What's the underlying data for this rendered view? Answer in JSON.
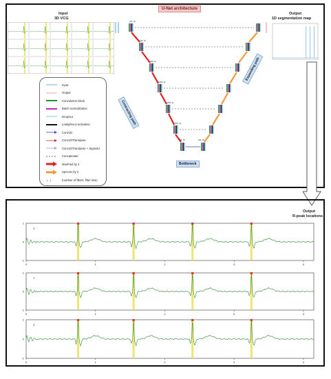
{
  "top_panel": {
    "title": "U-Net architecture",
    "input_title_line1": "Input",
    "input_title_line2": "3D VCG",
    "output_title_line1": "Output",
    "output_title_line2": "1D segmentation map",
    "contracting_path": "Contracting path",
    "expanding_path": "Expanding path",
    "bottleneck": "Bottleneck",
    "legend": [
      {
        "label": "Input",
        "color": "#4aa3df",
        "kind": "line"
      },
      {
        "label": "Output",
        "color": "#f08c8c",
        "kind": "line"
      },
      {
        "label": "Convolution block",
        "color": "#1f8f3a",
        "kind": "thick"
      },
      {
        "label": "Batch normalization",
        "color": "#c026c0",
        "kind": "thick"
      },
      {
        "label": "DropOut",
        "color": "#39c9c9",
        "kind": "line"
      },
      {
        "label": "LeakyReLU activation",
        "color": "#111111",
        "kind": "thick"
      },
      {
        "label": "Conv1D",
        "color": "#3a3af0",
        "kind": "arrow"
      },
      {
        "label": "Conv1DTranspose",
        "color": "#d0203a",
        "kind": "arrow"
      },
      {
        "label": "Conv1DTranspose + Sigmoid",
        "color": "#9a9ae8",
        "kind": "arrow"
      },
      {
        "label": "Concatenate",
        "color": "#333333",
        "kind": "dash"
      },
      {
        "label": "MaxPool by 2",
        "color": "#e02020",
        "kind": "bigarrow"
      },
      {
        "label": "UpConv by 2",
        "color": "#f09a3a",
        "kind": "bigarrow"
      },
      {
        "label": "(number of filters, filter size)",
        "color": "#333333",
        "kind": "text",
        "symbol": "( , )"
      }
    ],
    "unet_labels": {
      "enc": [
        "(16, 9)",
        "(32, 9)",
        "(64, 9)",
        "(128, 9)",
        "(256, 9)",
        "(512, 9)"
      ],
      "bottleneck_in": "(64, 9)",
      "bottleneck_out": "(64, 9)"
    }
  },
  "bottom_panel": {
    "output_line1": "Output",
    "output_line2": "R-peak locations",
    "lead_labels": [
      "X",
      "Y",
      "Z"
    ],
    "x_ticks": [
      "0",
      "1",
      "2",
      "3",
      "4"
    ],
    "y_ticks": [
      "1",
      "0",
      "-1"
    ]
  },
  "chart_data": {
    "type": "line",
    "xlim": [
      0,
      4.15
    ],
    "ylim": [
      -1,
      1
    ],
    "r_peaks_s": [
      0.75,
      1.55,
      2.4,
      3.25
    ],
    "series": [
      {
        "name": "X",
        "color": "#2e8b2e"
      },
      {
        "name": "Y",
        "color": "#2e8b2e"
      },
      {
        "name": "Z",
        "color": "#2e8b2e"
      }
    ],
    "peak_marker_color": "#e03030",
    "peak_band_color": "#e8e04a"
  }
}
